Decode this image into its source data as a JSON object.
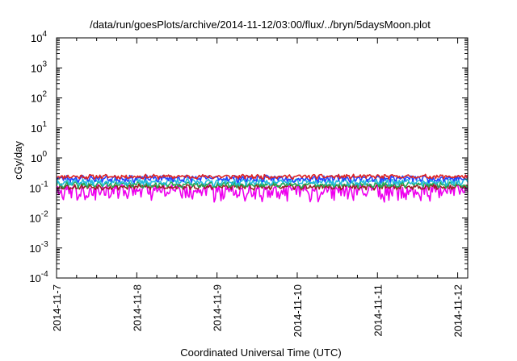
{
  "chart_data": {
    "type": "line",
    "title": "/data/run/goesPlots/archive/2014-11-12/03:00/flux/../bryn/5daysMoon.plot",
    "xlabel": "Coordinated Universal Time (UTC)",
    "ylabel": "cGy/day",
    "y_scale": "log",
    "ylim": [
      0.0001,
      10000
    ],
    "y_ticks": [
      {
        "base": "10",
        "exp": "-4",
        "value": 0.0001
      },
      {
        "base": "10",
        "exp": "-3",
        "value": 0.001
      },
      {
        "base": "10",
        "exp": "-2",
        "value": 0.01
      },
      {
        "base": "10",
        "exp": "-1",
        "value": 0.1
      },
      {
        "base": "10",
        "exp": "0",
        "value": 1
      },
      {
        "base": "10",
        "exp": "1",
        "value": 10
      },
      {
        "base": "10",
        "exp": "2",
        "value": 100
      },
      {
        "base": "10",
        "exp": "3",
        "value": 1000
      },
      {
        "base": "10",
        "exp": "4",
        "value": 10000
      }
    ],
    "x_range": [
      "2014-11-07",
      "2014-11-12T03:00"
    ],
    "x_ticks": [
      "2014-11-7",
      "2014-11-8",
      "2014-11-9",
      "2014-11-10",
      "2014-11-11",
      "2014-11-12"
    ],
    "grid": false,
    "legend": "none",
    "series": [
      {
        "color": "#dd2222",
        "typical": 0.24,
        "amplitude": 0.07,
        "seed": 11
      },
      {
        "color": "#2244ff",
        "typical": 0.21,
        "amplitude": 0.09,
        "seed": 23
      },
      {
        "color": "#22bbdd",
        "typical": 0.16,
        "amplitude": 0.07,
        "seed": 37
      },
      {
        "color": "#22aa55",
        "typical": 0.13,
        "amplitude": 0.05,
        "seed": 41
      },
      {
        "color": "#992222",
        "typical": 0.11,
        "amplitude": 0.04,
        "seed": 53
      },
      {
        "color": "#ee00ee",
        "typical": 0.085,
        "amplitude": 0.08,
        "seed": 67
      }
    ]
  }
}
